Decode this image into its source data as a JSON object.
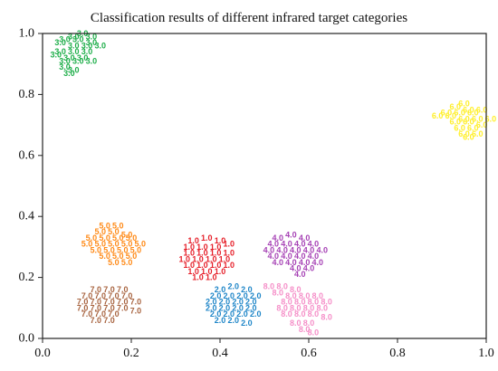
{
  "chart_data": {
    "type": "scatter",
    "title": "Classification results of different infrared target categories",
    "xlabel": "",
    "ylabel": "",
    "xlim": [
      0.0,
      1.0
    ],
    "ylim": [
      0.0,
      1.0
    ],
    "grid": false,
    "x_ticks": [
      "0.0",
      "0.2",
      "0.4",
      "0.6",
      "0.8",
      "1.0"
    ],
    "y_ticks": [
      "0.0",
      "0.2",
      "0.4",
      "0.6",
      "0.8",
      "1.0"
    ],
    "series": [
      {
        "label": "1.0",
        "color": "#e6202a",
        "points": [
          [
            0.34,
            0.32
          ],
          [
            0.37,
            0.33
          ],
          [
            0.4,
            0.32
          ],
          [
            0.33,
            0.3
          ],
          [
            0.36,
            0.3
          ],
          [
            0.39,
            0.3
          ],
          [
            0.42,
            0.31
          ],
          [
            0.33,
            0.28
          ],
          [
            0.36,
            0.28
          ],
          [
            0.39,
            0.28
          ],
          [
            0.42,
            0.28
          ],
          [
            0.32,
            0.26
          ],
          [
            0.35,
            0.26
          ],
          [
            0.38,
            0.26
          ],
          [
            0.41,
            0.26
          ],
          [
            0.33,
            0.24
          ],
          [
            0.36,
            0.24
          ],
          [
            0.39,
            0.24
          ],
          [
            0.42,
            0.24
          ],
          [
            0.34,
            0.22
          ],
          [
            0.37,
            0.22
          ],
          [
            0.4,
            0.22
          ],
          [
            0.35,
            0.2
          ],
          [
            0.38,
            0.2
          ]
        ]
      },
      {
        "label": "2.0",
        "color": "#1f86c8",
        "points": [
          [
            0.4,
            0.16
          ],
          [
            0.43,
            0.17
          ],
          [
            0.46,
            0.16
          ],
          [
            0.39,
            0.14
          ],
          [
            0.42,
            0.14
          ],
          [
            0.45,
            0.14
          ],
          [
            0.48,
            0.14
          ],
          [
            0.38,
            0.12
          ],
          [
            0.41,
            0.12
          ],
          [
            0.44,
            0.12
          ],
          [
            0.47,
            0.12
          ],
          [
            0.38,
            0.1
          ],
          [
            0.41,
            0.1
          ],
          [
            0.44,
            0.1
          ],
          [
            0.47,
            0.1
          ],
          [
            0.39,
            0.08
          ],
          [
            0.42,
            0.08
          ],
          [
            0.45,
            0.08
          ],
          [
            0.48,
            0.08
          ],
          [
            0.4,
            0.06
          ],
          [
            0.43,
            0.06
          ],
          [
            0.46,
            0.05
          ]
        ]
      },
      {
        "label": "3.0",
        "color": "#1fae4a",
        "points": [
          [
            0.09,
            1.0
          ],
          [
            0.07,
            0.99
          ],
          [
            0.11,
            0.99
          ],
          [
            0.05,
            0.98
          ],
          [
            0.08,
            0.98
          ],
          [
            0.11,
            0.97
          ],
          [
            0.04,
            0.97
          ],
          [
            0.07,
            0.96
          ],
          [
            0.1,
            0.96
          ],
          [
            0.13,
            0.96
          ],
          [
            0.04,
            0.94
          ],
          [
            0.07,
            0.94
          ],
          [
            0.1,
            0.94
          ],
          [
            0.03,
            0.93
          ],
          [
            0.06,
            0.92
          ],
          [
            0.09,
            0.92
          ],
          [
            0.05,
            0.91
          ],
          [
            0.08,
            0.91
          ],
          [
            0.11,
            0.91
          ],
          [
            0.05,
            0.89
          ],
          [
            0.07,
            0.88
          ],
          [
            0.06,
            0.87
          ]
        ]
      },
      {
        "label": "4.0",
        "color": "#a642b5",
        "points": [
          [
            0.53,
            0.33
          ],
          [
            0.56,
            0.34
          ],
          [
            0.59,
            0.33
          ],
          [
            0.52,
            0.31
          ],
          [
            0.55,
            0.31
          ],
          [
            0.58,
            0.31
          ],
          [
            0.61,
            0.31
          ],
          [
            0.51,
            0.29
          ],
          [
            0.54,
            0.29
          ],
          [
            0.57,
            0.29
          ],
          [
            0.6,
            0.29
          ],
          [
            0.63,
            0.29
          ],
          [
            0.52,
            0.27
          ],
          [
            0.55,
            0.27
          ],
          [
            0.58,
            0.27
          ],
          [
            0.61,
            0.27
          ],
          [
            0.53,
            0.25
          ],
          [
            0.56,
            0.25
          ],
          [
            0.59,
            0.25
          ],
          [
            0.62,
            0.25
          ],
          [
            0.57,
            0.23
          ],
          [
            0.6,
            0.23
          ],
          [
            0.58,
            0.21
          ]
        ]
      },
      {
        "label": "5.0",
        "color": "#ff8a17",
        "points": [
          [
            0.14,
            0.37
          ],
          [
            0.17,
            0.37
          ],
          [
            0.13,
            0.35
          ],
          [
            0.16,
            0.35
          ],
          [
            0.19,
            0.34
          ],
          [
            0.11,
            0.33
          ],
          [
            0.14,
            0.33
          ],
          [
            0.17,
            0.33
          ],
          [
            0.2,
            0.33
          ],
          [
            0.1,
            0.31
          ],
          [
            0.13,
            0.31
          ],
          [
            0.16,
            0.31
          ],
          [
            0.19,
            0.31
          ],
          [
            0.22,
            0.31
          ],
          [
            0.12,
            0.29
          ],
          [
            0.15,
            0.29
          ],
          [
            0.18,
            0.29
          ],
          [
            0.21,
            0.29
          ],
          [
            0.14,
            0.27
          ],
          [
            0.17,
            0.27
          ],
          [
            0.2,
            0.27
          ],
          [
            0.16,
            0.25
          ],
          [
            0.19,
            0.25
          ]
        ]
      },
      {
        "label": "6.0",
        "color": "#ffef2a",
        "points": [
          [
            0.95,
            0.77
          ],
          [
            0.93,
            0.76
          ],
          [
            0.96,
            0.75
          ],
          [
            0.99,
            0.75
          ],
          [
            0.91,
            0.74
          ],
          [
            0.94,
            0.74
          ],
          [
            0.97,
            0.74
          ],
          [
            0.89,
            0.73
          ],
          [
            0.92,
            0.73
          ],
          [
            0.95,
            0.72
          ],
          [
            0.98,
            0.72
          ],
          [
            1.01,
            0.72
          ],
          [
            0.93,
            0.71
          ],
          [
            0.96,
            0.71
          ],
          [
            0.99,
            0.7
          ],
          [
            0.94,
            0.69
          ],
          [
            0.97,
            0.69
          ],
          [
            0.95,
            0.67
          ],
          [
            0.98,
            0.67
          ],
          [
            0.96,
            0.66
          ]
        ]
      },
      {
        "label": "7.0",
        "color": "#a86440",
        "points": [
          [
            0.12,
            0.16
          ],
          [
            0.15,
            0.16
          ],
          [
            0.18,
            0.16
          ],
          [
            0.1,
            0.14
          ],
          [
            0.13,
            0.14
          ],
          [
            0.16,
            0.14
          ],
          [
            0.19,
            0.14
          ],
          [
            0.09,
            0.12
          ],
          [
            0.12,
            0.12
          ],
          [
            0.15,
            0.12
          ],
          [
            0.18,
            0.12
          ],
          [
            0.21,
            0.12
          ],
          [
            0.09,
            0.1
          ],
          [
            0.12,
            0.1
          ],
          [
            0.15,
            0.1
          ],
          [
            0.18,
            0.1
          ],
          [
            0.21,
            0.09
          ],
          [
            0.1,
            0.08
          ],
          [
            0.13,
            0.08
          ],
          [
            0.16,
            0.08
          ],
          [
            0.12,
            0.06
          ],
          [
            0.15,
            0.06
          ]
        ]
      },
      {
        "label": "8.0",
        "color": "#f58fc8",
        "points": [
          [
            0.51,
            0.17
          ],
          [
            0.54,
            0.17
          ],
          [
            0.57,
            0.16
          ],
          [
            0.53,
            0.15
          ],
          [
            0.56,
            0.14
          ],
          [
            0.59,
            0.14
          ],
          [
            0.62,
            0.14
          ],
          [
            0.55,
            0.12
          ],
          [
            0.58,
            0.12
          ],
          [
            0.61,
            0.12
          ],
          [
            0.64,
            0.12
          ],
          [
            0.54,
            0.1
          ],
          [
            0.57,
            0.1
          ],
          [
            0.6,
            0.1
          ],
          [
            0.63,
            0.1
          ],
          [
            0.55,
            0.08
          ],
          [
            0.58,
            0.08
          ],
          [
            0.61,
            0.08
          ],
          [
            0.64,
            0.07
          ],
          [
            0.57,
            0.05
          ],
          [
            0.6,
            0.05
          ],
          [
            0.59,
            0.03
          ],
          [
            0.61,
            0.02
          ]
        ]
      }
    ]
  }
}
